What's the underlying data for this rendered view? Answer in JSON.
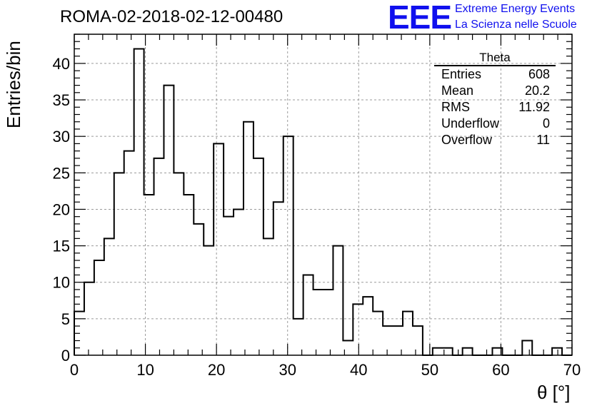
{
  "chart_data": {
    "type": "histogram",
    "title": "ROMA-02-2018-02-12-00480",
    "xlabel": "θ [°]",
    "ylabel": "Entries/bin",
    "xlim": [
      0,
      70
    ],
    "ylim": [
      0,
      44
    ],
    "bin_width": 1.4,
    "x_ticks": [
      0,
      10,
      20,
      30,
      40,
      50,
      60,
      70
    ],
    "y_ticks": [
      0,
      5,
      10,
      15,
      20,
      25,
      30,
      35,
      40
    ],
    "grid": true,
    "values": [
      6,
      10,
      13,
      16,
      25,
      28,
      42,
      22,
      27,
      37,
      25,
      22,
      18,
      15,
      29,
      19,
      20,
      32,
      27,
      16,
      21,
      30,
      5,
      11,
      9,
      9,
      15,
      2,
      7,
      8,
      6,
      4,
      4,
      6,
      4,
      0,
      1,
      1,
      0,
      1,
      0,
      0,
      1,
      0,
      0,
      2,
      0,
      0,
      1,
      0
    ]
  },
  "stats": {
    "title": "Theta",
    "rows": [
      {
        "label": "Entries",
        "value": "608"
      },
      {
        "label": "Mean",
        "value": "20.2"
      },
      {
        "label": "RMS",
        "value": "11.92"
      },
      {
        "label": "Underflow",
        "value": "0"
      },
      {
        "label": "Overflow",
        "value": "11"
      }
    ]
  },
  "logo": {
    "mark": "EEE",
    "line1": "Extreme Energy Events",
    "line2": "La Scienza nelle Scuole",
    "color": "#1010ee"
  }
}
